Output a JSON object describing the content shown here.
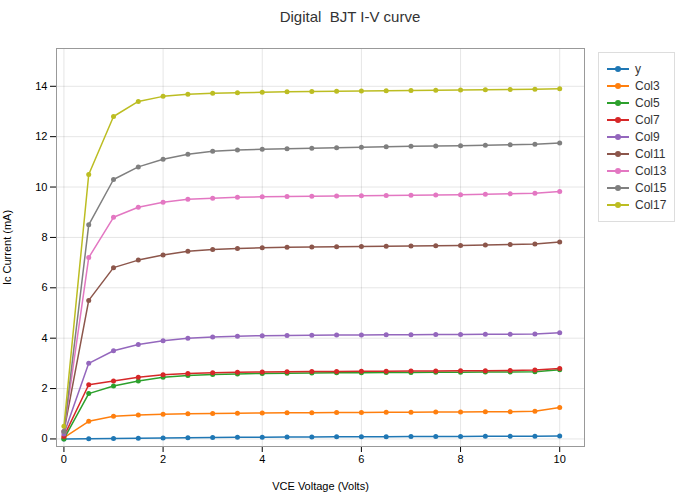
{
  "chart_data": {
    "type": "line",
    "title": "Digital  BJT I-V curve",
    "xlabel": "VCE Voltage (Volts)",
    "ylabel": "Ic Current (mA)",
    "xlim": [
      -0.15,
      10.5
    ],
    "ylim": [
      -0.3,
      15.5
    ],
    "xticks": [
      0,
      2,
      4,
      6,
      8,
      10
    ],
    "yticks": [
      0,
      2,
      4,
      6,
      8,
      10,
      12,
      14
    ],
    "grid": true,
    "legend": "right",
    "marker": "circle",
    "x": [
      0,
      0.5,
      1.0,
      1.5,
      2.0,
      2.5,
      3.0,
      3.5,
      4.0,
      4.5,
      5.0,
      5.5,
      6.0,
      6.5,
      7.0,
      7.5,
      8.0,
      8.5,
      9.0,
      9.5,
      10.0
    ],
    "series": [
      {
        "name": "y",
        "color": "#1f77b4",
        "values": [
          0.0,
          0.01,
          0.02,
          0.03,
          0.04,
          0.05,
          0.06,
          0.07,
          0.07,
          0.08,
          0.08,
          0.09,
          0.09,
          0.09,
          0.1,
          0.1,
          0.1,
          0.11,
          0.11,
          0.11,
          0.12
        ]
      },
      {
        "name": "Col3",
        "color": "#ff7f0e",
        "values": [
          0.05,
          0.7,
          0.9,
          0.95,
          0.98,
          1.0,
          1.01,
          1.02,
          1.03,
          1.04,
          1.04,
          1.05,
          1.05,
          1.06,
          1.06,
          1.07,
          1.07,
          1.08,
          1.08,
          1.1,
          1.25
        ]
      },
      {
        "name": "Col5",
        "color": "#2ca02c",
        "values": [
          0.0,
          1.8,
          2.1,
          2.3,
          2.45,
          2.52,
          2.56,
          2.58,
          2.6,
          2.61,
          2.62,
          2.63,
          2.63,
          2.64,
          2.64,
          2.65,
          2.65,
          2.66,
          2.66,
          2.67,
          2.75
        ]
      },
      {
        "name": "Col7",
        "color": "#d62728",
        "values": [
          0.1,
          2.15,
          2.3,
          2.45,
          2.55,
          2.6,
          2.63,
          2.65,
          2.66,
          2.67,
          2.68,
          2.68,
          2.69,
          2.69,
          2.7,
          2.7,
          2.71,
          2.71,
          2.72,
          2.74,
          2.8
        ]
      },
      {
        "name": "Col9",
        "color": "#9467bd",
        "values": [
          0.2,
          3.0,
          3.5,
          3.75,
          3.9,
          4.0,
          4.05,
          4.08,
          4.1,
          4.11,
          4.12,
          4.13,
          4.13,
          4.14,
          4.14,
          4.15,
          4.15,
          4.16,
          4.16,
          4.17,
          4.22
        ]
      },
      {
        "name": "Col11",
        "color": "#8c564b",
        "values": [
          0.3,
          5.5,
          6.8,
          7.1,
          7.3,
          7.45,
          7.52,
          7.56,
          7.59,
          7.61,
          7.62,
          7.63,
          7.64,
          7.65,
          7.66,
          7.67,
          7.68,
          7.7,
          7.72,
          7.74,
          7.82
        ]
      },
      {
        "name": "Col13",
        "color": "#e377c2",
        "values": [
          0.3,
          7.2,
          8.8,
          9.2,
          9.4,
          9.52,
          9.56,
          9.59,
          9.61,
          9.62,
          9.63,
          9.64,
          9.65,
          9.66,
          9.67,
          9.68,
          9.69,
          9.71,
          9.73,
          9.75,
          9.82
        ]
      },
      {
        "name": "Col15",
        "color": "#7f7f7f",
        "values": [
          0.3,
          8.5,
          10.3,
          10.8,
          11.1,
          11.3,
          11.42,
          11.47,
          11.5,
          11.52,
          11.54,
          11.56,
          11.58,
          11.6,
          11.62,
          11.63,
          11.64,
          11.66,
          11.68,
          11.7,
          11.75
        ]
      },
      {
        "name": "Col17",
        "color": "#bcbd22",
        "values": [
          0.5,
          10.5,
          12.8,
          13.4,
          13.6,
          13.68,
          13.72,
          13.74,
          13.76,
          13.78,
          13.79,
          13.8,
          13.81,
          13.82,
          13.83,
          13.84,
          13.85,
          13.86,
          13.87,
          13.88,
          13.9
        ]
      }
    ]
  }
}
